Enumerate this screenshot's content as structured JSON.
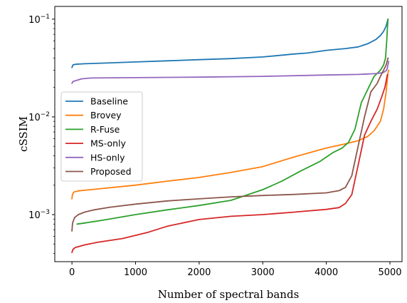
{
  "chart_data": {
    "type": "line",
    "xlabel": "Number of spectral bands",
    "ylabel": "cSSIM",
    "xlim": [
      -270,
      5190
    ],
    "ylim": [
      0.00033,
      0.135
    ],
    "y_scale": "log",
    "x_ticks": [
      0,
      1000,
      2000,
      3000,
      4000,
      5000
    ],
    "x_tick_labels": [
      "0",
      "1000",
      "2000",
      "3000",
      "4000",
      "5000"
    ],
    "y_ticks": [
      0.001,
      0.01,
      0.1
    ],
    "y_tick_labels": [
      {
        "base": "10",
        "exp": "−3"
      },
      {
        "base": "10",
        "exp": "−2"
      },
      {
        "base": "10",
        "exp": "−1"
      }
    ],
    "grid": false,
    "legend_position": "center-left",
    "series": [
      {
        "name": "Baseline",
        "color": "#1f77b4",
        "points": [
          [
            0,
            0.032
          ],
          [
            15,
            0.034
          ],
          [
            50,
            0.0345
          ],
          [
            200,
            0.035
          ],
          [
            500,
            0.0355
          ],
          [
            1000,
            0.0365
          ],
          [
            1500,
            0.0375
          ],
          [
            2000,
            0.0385
          ],
          [
            2500,
            0.0395
          ],
          [
            3000,
            0.041
          ],
          [
            3500,
            0.044
          ],
          [
            3700,
            0.045
          ],
          [
            4000,
            0.048
          ],
          [
            4300,
            0.05
          ],
          [
            4500,
            0.052
          ],
          [
            4650,
            0.056
          ],
          [
            4780,
            0.062
          ],
          [
            4850,
            0.068
          ],
          [
            4900,
            0.075
          ],
          [
            4940,
            0.085
          ],
          [
            4970,
            0.1
          ]
        ]
      },
      {
        "name": "Brovey",
        "color": "#ff7f0e",
        "points": [
          [
            0,
            0.00145
          ],
          [
            8,
            0.0016
          ],
          [
            30,
            0.0017
          ],
          [
            100,
            0.00175
          ],
          [
            300,
            0.0018
          ],
          [
            1000,
            0.002
          ],
          [
            1500,
            0.0022
          ],
          [
            2000,
            0.0024
          ],
          [
            2500,
            0.0027
          ],
          [
            3000,
            0.0031
          ],
          [
            3500,
            0.0039
          ],
          [
            4000,
            0.0048
          ],
          [
            4300,
            0.0053
          ],
          [
            4500,
            0.0057
          ],
          [
            4650,
            0.0063
          ],
          [
            4750,
            0.0072
          ],
          [
            4850,
            0.009
          ],
          [
            4900,
            0.012
          ],
          [
            4940,
            0.018
          ],
          [
            4970,
            0.028
          ],
          [
            4980,
            0.03
          ]
        ]
      },
      {
        "name": "R-Fuse",
        "color": "#2ca02c",
        "points": [
          [
            80,
            0.0008
          ],
          [
            200,
            0.00082
          ],
          [
            500,
            0.00088
          ],
          [
            1000,
            0.001
          ],
          [
            1500,
            0.00112
          ],
          [
            2000,
            0.00124
          ],
          [
            2500,
            0.0014
          ],
          [
            3000,
            0.0018
          ],
          [
            3300,
            0.0022
          ],
          [
            3600,
            0.0028
          ],
          [
            3900,
            0.0035
          ],
          [
            4100,
            0.0043
          ],
          [
            4250,
            0.0048
          ],
          [
            4350,
            0.0055
          ],
          [
            4450,
            0.0075
          ],
          [
            4550,
            0.014
          ],
          [
            4650,
            0.019
          ],
          [
            4750,
            0.026
          ],
          [
            4850,
            0.03
          ],
          [
            4900,
            0.034
          ],
          [
            4930,
            0.04
          ],
          [
            4950,
            0.06
          ],
          [
            4960,
            0.08
          ],
          [
            4970,
            0.1
          ]
        ]
      },
      {
        "name": "MS-only",
        "color": "#d62728",
        "points": [
          [
            0,
            0.00041
          ],
          [
            15,
            0.00044
          ],
          [
            50,
            0.00046
          ],
          [
            200,
            0.00049
          ],
          [
            400,
            0.00052
          ],
          [
            800,
            0.00057
          ],
          [
            1200,
            0.00066
          ],
          [
            1500,
            0.00076
          ],
          [
            2000,
            0.00089
          ],
          [
            2500,
            0.00096
          ],
          [
            3000,
            0.001
          ],
          [
            3500,
            0.00106
          ],
          [
            4000,
            0.00113
          ],
          [
            4200,
            0.00118
          ],
          [
            4300,
            0.0013
          ],
          [
            4400,
            0.0016
          ],
          [
            4500,
            0.0032
          ],
          [
            4600,
            0.0065
          ],
          [
            4700,
            0.009
          ],
          [
            4800,
            0.012
          ],
          [
            4870,
            0.016
          ],
          [
            4920,
            0.02
          ],
          [
            4960,
            0.027
          ]
        ]
      },
      {
        "name": "HS-only",
        "color": "#9467bd",
        "points": [
          [
            0,
            0.022
          ],
          [
            15,
            0.023
          ],
          [
            60,
            0.0235
          ],
          [
            150,
            0.0245
          ],
          [
            300,
            0.025
          ],
          [
            1000,
            0.0252
          ],
          [
            2000,
            0.0255
          ],
          [
            3000,
            0.026
          ],
          [
            4000,
            0.0268
          ],
          [
            4500,
            0.0272
          ],
          [
            4800,
            0.0278
          ],
          [
            4900,
            0.0285
          ],
          [
            4950,
            0.03
          ],
          [
            4970,
            0.034
          ],
          [
            4980,
            0.037
          ]
        ]
      },
      {
        "name": "Proposed",
        "color": "#8c564b",
        "points": [
          [
            0,
            0.00068
          ],
          [
            10,
            0.00082
          ],
          [
            40,
            0.00093
          ],
          [
            100,
            0.001
          ],
          [
            200,
            0.00106
          ],
          [
            350,
            0.00112
          ],
          [
            600,
            0.00119
          ],
          [
            1000,
            0.00128
          ],
          [
            1500,
            0.00138
          ],
          [
            2000,
            0.00145
          ],
          [
            2500,
            0.00152
          ],
          [
            3000,
            0.00157
          ],
          [
            3500,
            0.00161
          ],
          [
            4000,
            0.00167
          ],
          [
            4200,
            0.00176
          ],
          [
            4300,
            0.0019
          ],
          [
            4400,
            0.0025
          ],
          [
            4500,
            0.005
          ],
          [
            4600,
            0.01
          ],
          [
            4700,
            0.018
          ],
          [
            4800,
            0.022
          ],
          [
            4850,
            0.026
          ],
          [
            4900,
            0.03
          ],
          [
            4940,
            0.034
          ],
          [
            4970,
            0.04
          ]
        ]
      }
    ]
  }
}
